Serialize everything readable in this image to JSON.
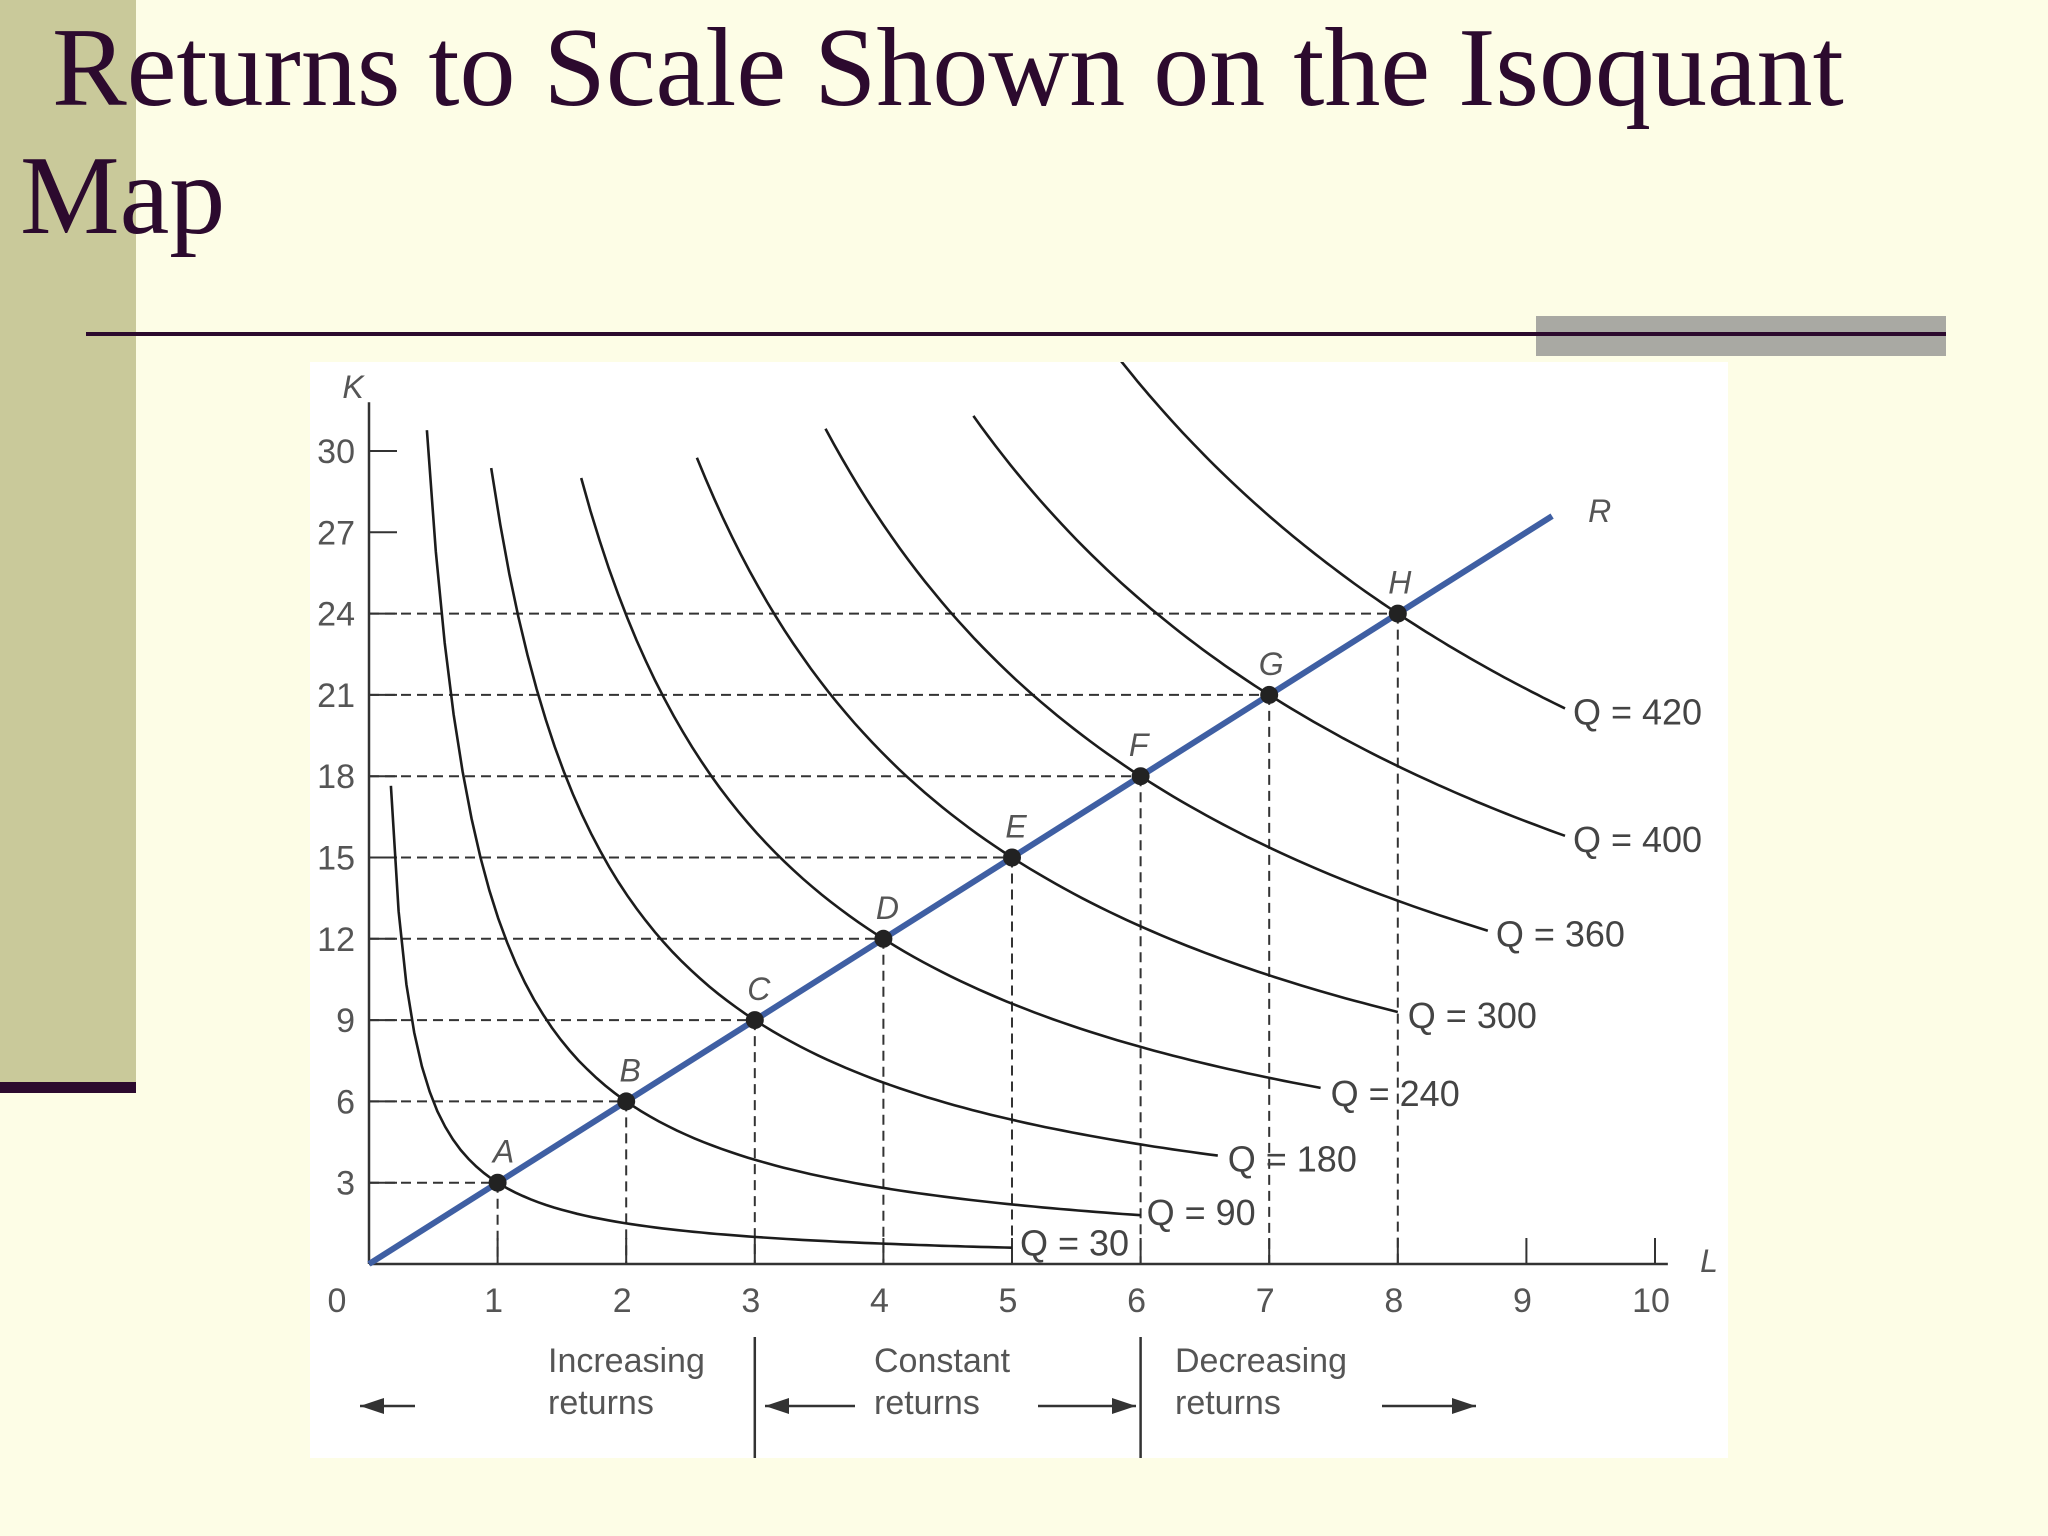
{
  "slide": {
    "title": "Returns to Scale Shown on the Isoquant Map"
  },
  "chart_data": {
    "type": "line",
    "xlabel": "L",
    "ylabel": "K",
    "xlim": [
      0,
      10
    ],
    "ylim": [
      0,
      30
    ],
    "x_ticks": [
      "0",
      "1",
      "2",
      "3",
      "4",
      "5",
      "6",
      "7",
      "8",
      "9",
      "10"
    ],
    "y_ticks": [
      "3",
      "6",
      "9",
      "12",
      "15",
      "18",
      "21",
      "24",
      "27",
      "30"
    ],
    "grid": false,
    "ray": {
      "name": "R",
      "points": [
        [
          0,
          0
        ],
        [
          9.2,
          27.6
        ]
      ]
    },
    "points": [
      {
        "name": "A",
        "L": 1,
        "K": 3
      },
      {
        "name": "B",
        "L": 2,
        "K": 6
      },
      {
        "name": "C",
        "L": 3,
        "K": 9
      },
      {
        "name": "D",
        "L": 4,
        "K": 12
      },
      {
        "name": "E",
        "L": 5,
        "K": 15
      },
      {
        "name": "F",
        "L": 6,
        "K": 18
      },
      {
        "name": "G",
        "L": 7,
        "K": 21
      },
      {
        "name": "H",
        "L": 8,
        "K": 24
      }
    ],
    "series": [
      {
        "name": "Q = 30",
        "through": "A",
        "L_range": [
          0.17,
          5.0
        ],
        "K_end": 0.6
      },
      {
        "name": "Q = 90",
        "through": "B",
        "L_range": [
          0.45,
          6.0
        ],
        "K_end": 1.8
      },
      {
        "name": "Q = 180",
        "through": "C",
        "L_range": [
          0.95,
          6.6
        ],
        "K_end": 4.0
      },
      {
        "name": "Q = 240",
        "through": "D",
        "L_range": [
          1.65,
          7.4
        ],
        "K_end": 6.5
      },
      {
        "name": "Q = 300",
        "through": "E",
        "L_range": [
          2.55,
          8.0
        ],
        "K_end": 9.3
      },
      {
        "name": "Q = 360",
        "through": "F",
        "L_range": [
          3.55,
          8.7
        ],
        "K_end": 12.3
      },
      {
        "name": "Q = 400",
        "through": "G",
        "L_range": [
          4.7,
          9.3
        ],
        "K_end": 15.8
      },
      {
        "name": "Q = 420",
        "through": "H",
        "L_range": [
          5.85,
          9.3
        ],
        "K_end": 20.5
      }
    ],
    "regions": [
      {
        "line1": "Increasing",
        "line2": "returns",
        "L_range": [
          0,
          3
        ]
      },
      {
        "line1": "Constant",
        "line2": "returns",
        "L_range": [
          3,
          6
        ]
      },
      {
        "line1": "Decreasing",
        "line2": "returns",
        "L_range": [
          6,
          10
        ]
      }
    ],
    "colors": {
      "ray": "#3f5fa3",
      "curve": "#1c1c1c",
      "guide": "#333333"
    }
  }
}
